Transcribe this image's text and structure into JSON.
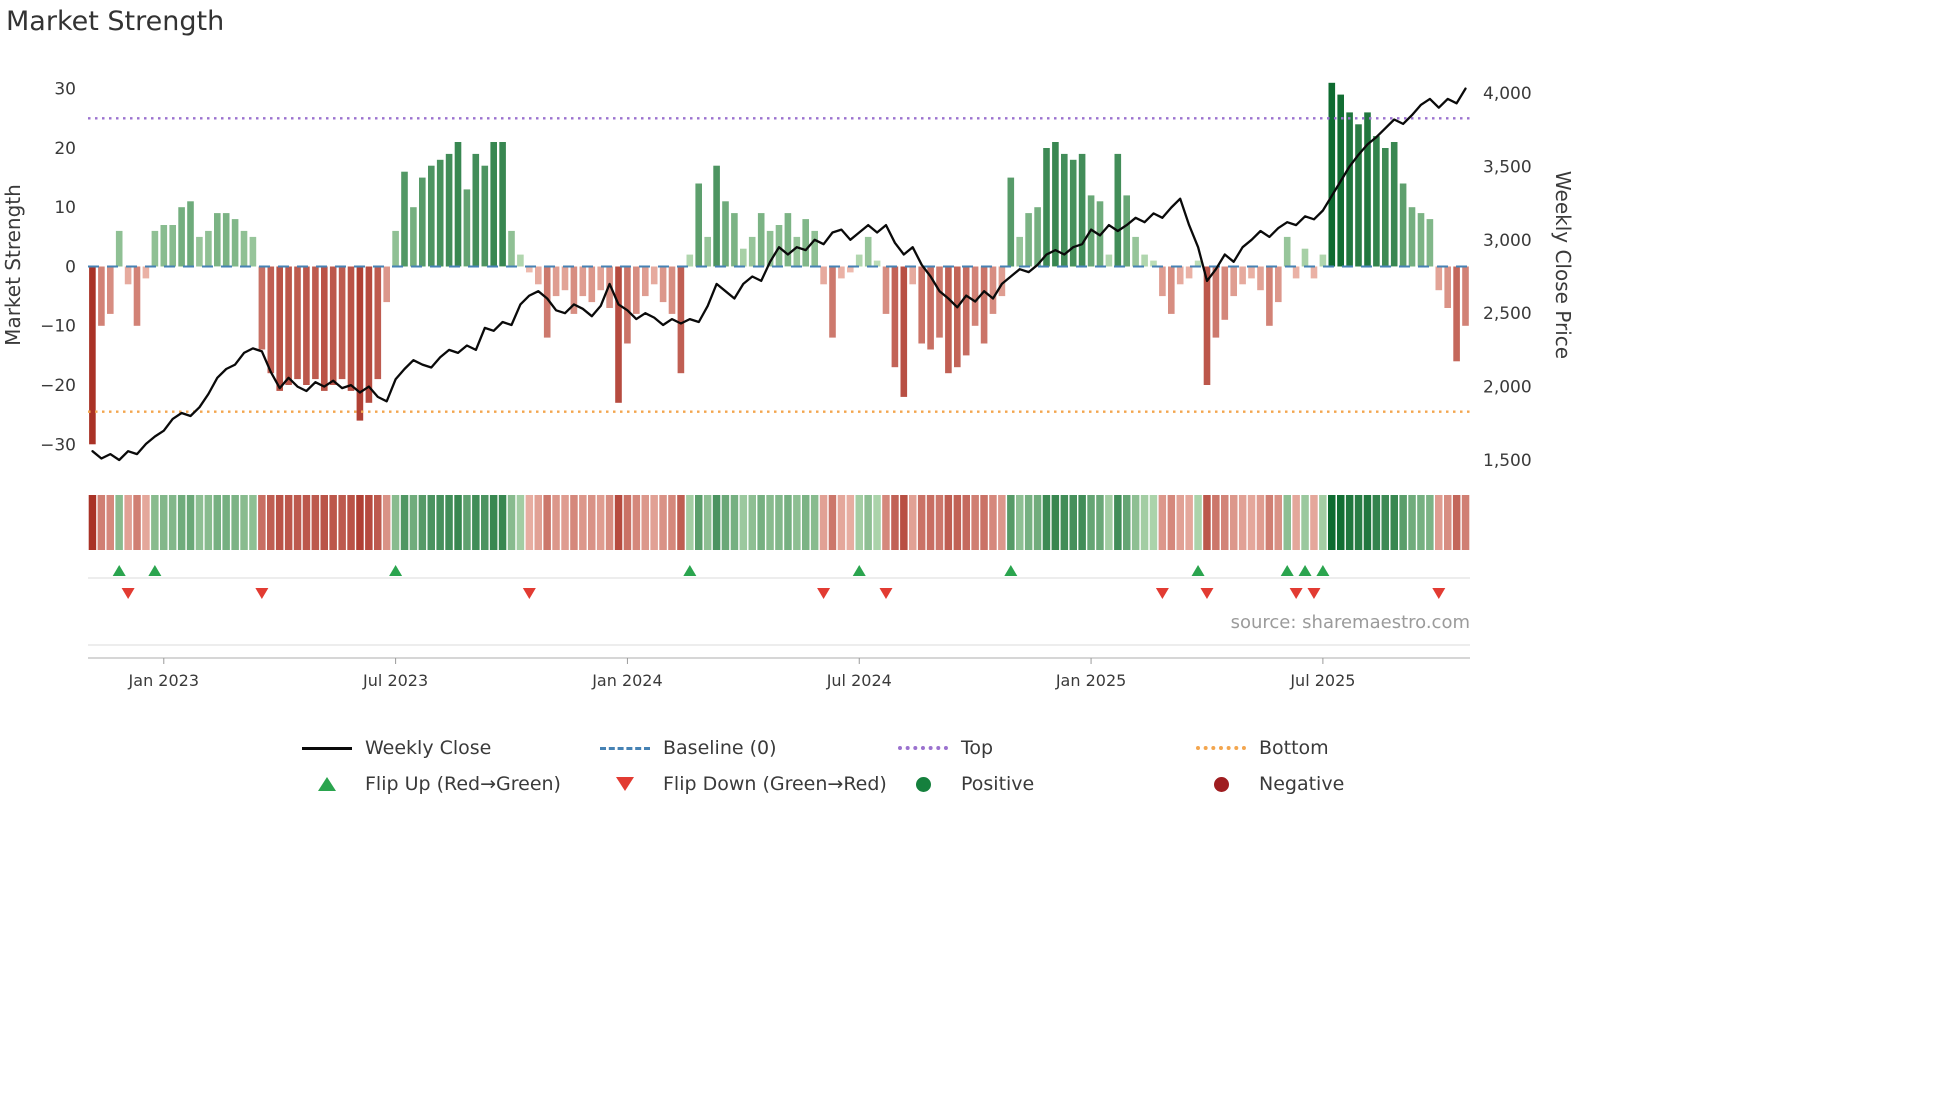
{
  "page": {
    "title": "Market Strength",
    "source": "source: sharemaestro.com"
  },
  "legend": {
    "items": [
      {
        "name": "weekly-close",
        "label": "Weekly Close",
        "type": "line",
        "color": "#0a0a0a"
      },
      {
        "name": "baseline",
        "label": "Baseline (0)",
        "type": "dashed",
        "color": "#4682b4"
      },
      {
        "name": "top",
        "label": "Top",
        "type": "dotted",
        "color": "#9b72cf"
      },
      {
        "name": "bottom",
        "label": "Bottom",
        "type": "dotted",
        "color": "#f3a64f"
      },
      {
        "name": "flip-up",
        "label": "Flip Up (Red→Green)",
        "type": "triangle-up",
        "color": "#2aa44e"
      },
      {
        "name": "flip-down",
        "label": "Flip Down (Green→Red)",
        "type": "triangle-down",
        "color": "#e23b32"
      },
      {
        "name": "positive",
        "label": "Positive",
        "type": "dot",
        "color": "#15803d"
      },
      {
        "name": "negative",
        "label": "Negative",
        "type": "dot",
        "color": "#9f1d20"
      }
    ]
  },
  "chart_data": {
    "type": "bar+line",
    "title": "Market Strength",
    "x_start_date": "2022-11-07",
    "x_freq": "weekly",
    "n_points": 155,
    "strength": [
      -30,
      -10,
      -8,
      6,
      -3,
      -10,
      -2,
      6,
      7,
      7,
      10,
      11,
      5,
      6,
      9,
      9,
      8,
      6,
      5,
      -14,
      -18,
      -21,
      -20,
      -19,
      -20,
      -19,
      -21,
      -20,
      -19,
      -21,
      -26,
      -23,
      -19,
      -6,
      6,
      16,
      10,
      15,
      17,
      18,
      19,
      21,
      13,
      19,
      17,
      21,
      21,
      6,
      2,
      -1,
      -3,
      -12,
      -5,
      -4,
      -8,
      -5,
      -6,
      -4,
      -7,
      -23,
      -13,
      -8,
      -5,
      -3,
      -6,
      -8,
      -18,
      2,
      14,
      5,
      17,
      11,
      9,
      3,
      5,
      9,
      6,
      7,
      9,
      5,
      8,
      6,
      -3,
      -12,
      -2,
      -1,
      2,
      5,
      1,
      -8,
      -17,
      -22,
      -3,
      -13,
      -14,
      -12,
      -18,
      -17,
      -15,
      -10,
      -13,
      -8,
      -5,
      15,
      5,
      9,
      10,
      20,
      21,
      19,
      18,
      19,
      12,
      11,
      2,
      19,
      12,
      5,
      2,
      1,
      -5,
      -8,
      -3,
      -2,
      1,
      -20,
      -12,
      -9,
      -5,
      -3,
      -2,
      -4,
      -10,
      -6,
      5,
      -2,
      3,
      -2,
      2,
      31,
      29,
      26,
      24,
      26,
      22,
      20,
      21,
      14,
      10,
      9,
      8,
      -4,
      -7,
      -16,
      -10
    ],
    "weekly_close": [
      1560,
      1510,
      1540,
      1500,
      1560,
      1540,
      1610,
      1660,
      1700,
      1780,
      1820,
      1800,
      1860,
      1950,
      2060,
      2120,
      2150,
      2230,
      2260,
      2240,
      2100,
      1990,
      2060,
      2000,
      1970,
      2030,
      2000,
      2040,
      1990,
      2010,
      1960,
      2000,
      1930,
      1900,
      2050,
      2120,
      2180,
      2150,
      2130,
      2200,
      2250,
      2230,
      2280,
      2250,
      2400,
      2380,
      2440,
      2420,
      2560,
      2620,
      2650,
      2600,
      2520,
      2500,
      2560,
      2530,
      2480,
      2550,
      2700,
      2560,
      2520,
      2460,
      2500,
      2470,
      2420,
      2460,
      2430,
      2460,
      2440,
      2550,
      2700,
      2650,
      2600,
      2700,
      2750,
      2720,
      2850,
      2950,
      2900,
      2950,
      2930,
      3000,
      2970,
      3050,
      3070,
      3000,
      3050,
      3100,
      3050,
      3100,
      2980,
      2900,
      2950,
      2830,
      2750,
      2650,
      2600,
      2540,
      2620,
      2580,
      2650,
      2600,
      2700,
      2750,
      2800,
      2780,
      2830,
      2900,
      2930,
      2900,
      2950,
      2970,
      3070,
      3030,
      3100,
      3060,
      3100,
      3150,
      3120,
      3180,
      3150,
      3220,
      3280,
      3100,
      2950,
      2720,
      2800,
      2900,
      2850,
      2950,
      3000,
      3060,
      3020,
      3080,
      3120,
      3100,
      3160,
      3140,
      3200,
      3300,
      3400,
      3500,
      3580,
      3650,
      3700,
      3760,
      3820,
      3790,
      3850,
      3920,
      3960,
      3900,
      3960,
      3930,
      4030
    ],
    "flip_up_indices": [
      3,
      7,
      34,
      67,
      86,
      103,
      124,
      134,
      136,
      138
    ],
    "flip_down_indices": [
      4,
      19,
      49,
      82,
      89,
      120,
      125,
      135,
      137,
      151
    ],
    "baseline": 0,
    "top_line": 25,
    "bottom_line": -24.5,
    "left_axis": {
      "label": "Market Strength",
      "ticks": [
        30,
        20,
        10,
        0,
        -10,
        -20,
        -30
      ],
      "lim": [
        -33.5,
        34
      ]
    },
    "right_axis": {
      "label": "Weekly Close Price",
      "ticks": [
        4000,
        3500,
        3000,
        2500,
        2000,
        1500
      ],
      "lim": [
        1466,
        4191
      ]
    },
    "x_ticks": [
      {
        "index": 8,
        "label": "Jan 2023"
      },
      {
        "index": 34,
        "label": "Jul 2023"
      },
      {
        "index": 60,
        "label": "Jan 2024"
      },
      {
        "index": 86,
        "label": "Jul 2024"
      },
      {
        "index": 112,
        "label": "Jan 2025"
      },
      {
        "index": 138,
        "label": "Jul 2025"
      }
    ],
    "colors": {
      "pos_dark": "#0e6b30",
      "pos_light": "#cde9c4",
      "neg_dark": "#a93226",
      "neg_light": "#f5c8bc",
      "line": "#0a0a0a",
      "baseline": "#4682b4",
      "top": "#9b72cf",
      "bottom": "#f3a64f",
      "flip_up": "#2aa44e",
      "flip_down": "#e23b32"
    }
  }
}
